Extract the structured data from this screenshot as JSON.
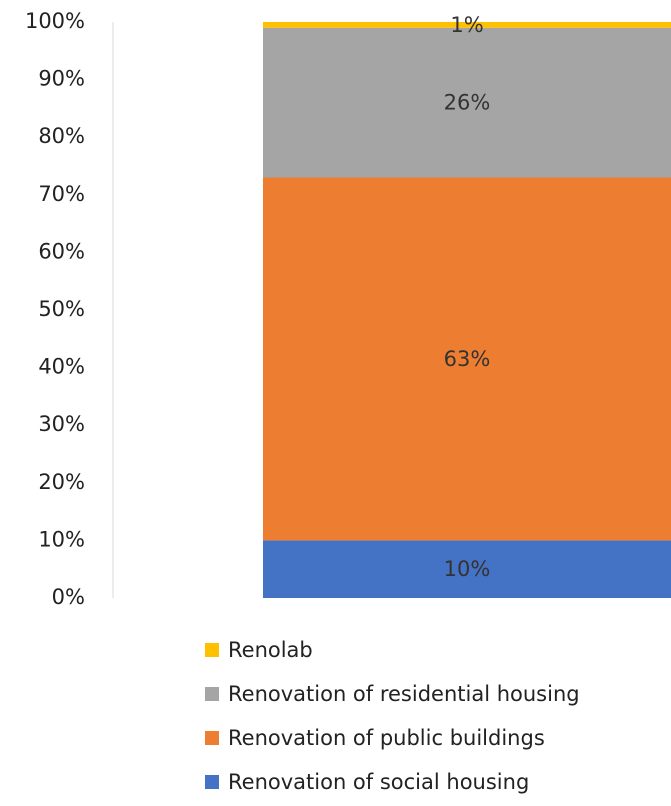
{
  "chart_data": {
    "type": "stacked_bar",
    "categories": [
      null
    ],
    "series": [
      {
        "name": "Renovation of social housing",
        "color": "#4472c4",
        "values": [
          10
        ],
        "value_labels": [
          "10%"
        ]
      },
      {
        "name": "Renovation of public buildings",
        "color": "#ed7d31",
        "values": [
          63
        ],
        "value_labels": [
          "63%"
        ]
      },
      {
        "name": "Renovation of residential housing",
        "color": "#a5a5a5",
        "values": [
          26
        ],
        "value_labels": [
          "26%"
        ]
      },
      {
        "name": "Renolab",
        "color": "#ffc000",
        "values": [
          1
        ],
        "value_labels": [
          "1%"
        ]
      }
    ],
    "ylim": [
      0,
      100
    ],
    "yticks": [
      {
        "value": 0,
        "label": "0%"
      },
      {
        "value": 10,
        "label": "10%"
      },
      {
        "value": 20,
        "label": "20%"
      },
      {
        "value": 30,
        "label": "30%"
      },
      {
        "value": 40,
        "label": "40%"
      },
      {
        "value": 50,
        "label": "50%"
      },
      {
        "value": 60,
        "label": "60%"
      },
      {
        "value": 70,
        "label": "70%"
      },
      {
        "value": 80,
        "label": "80%"
      },
      {
        "value": 90,
        "label": "90%"
      },
      {
        "value": 100,
        "label": "100%"
      }
    ],
    "grid": false,
    "legend": "bottom"
  }
}
